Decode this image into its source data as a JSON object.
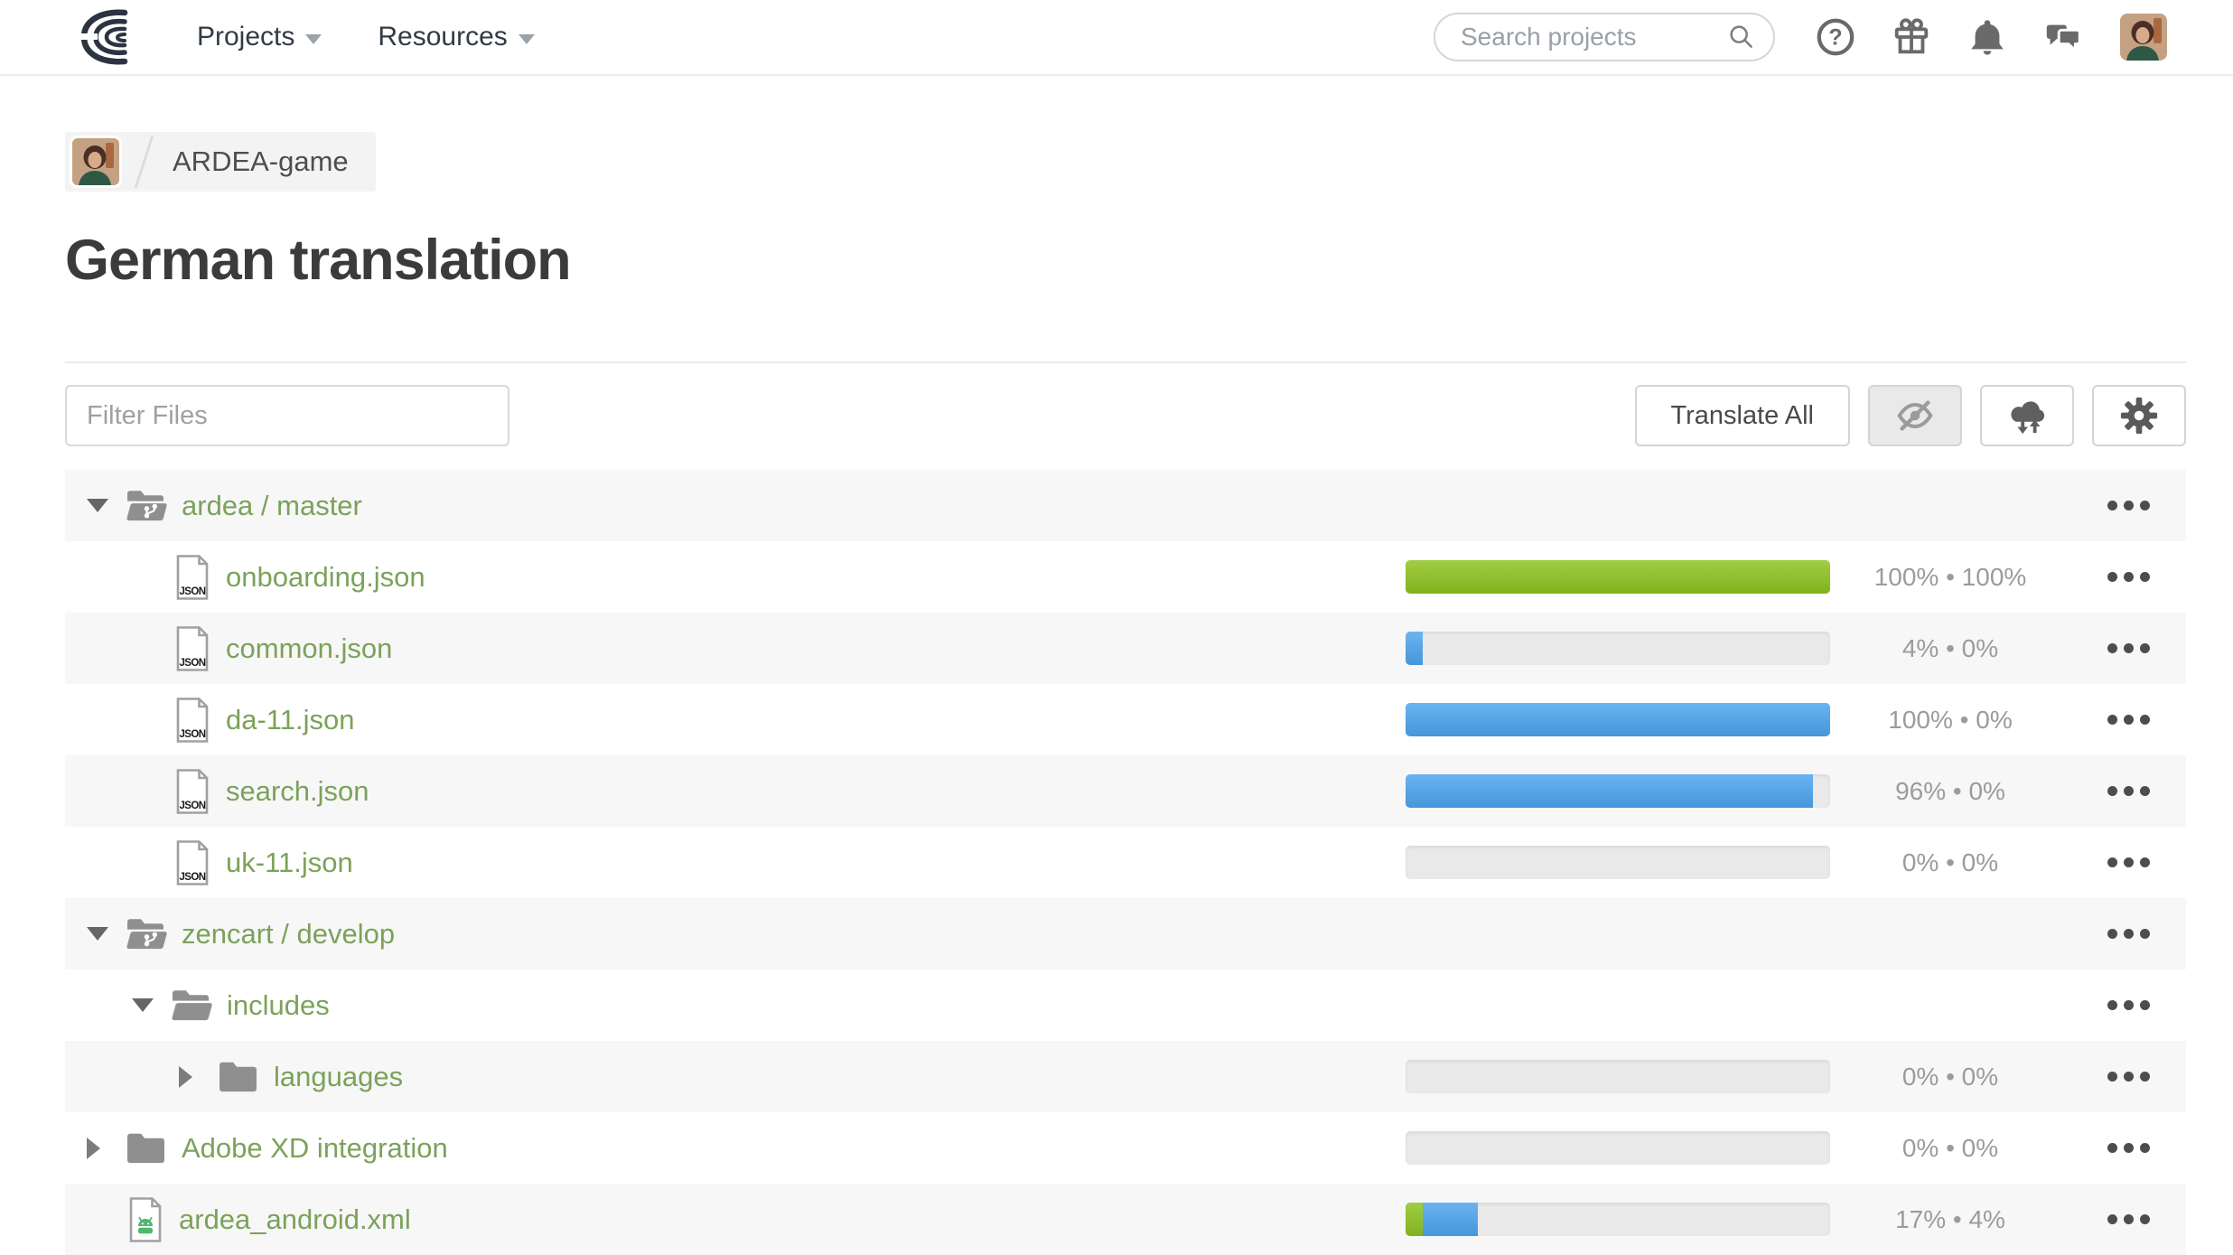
{
  "nav": {
    "projects_label": "Projects",
    "resources_label": "Resources",
    "search_placeholder": "Search projects"
  },
  "breadcrumb": {
    "project_name": "ARDEA-game"
  },
  "page": {
    "title": "German translation"
  },
  "toolbar": {
    "filter_placeholder": "Filter Files",
    "translate_all_label": "Translate All"
  },
  "files": {
    "rows": [
      {
        "name": "ardea / master",
        "type": "branch",
        "icon": "folder-git",
        "caret": "down",
        "indent": 24,
        "bar": null,
        "progress": null
      },
      {
        "name": "onboarding.json",
        "type": "file",
        "icon": "file-json",
        "caret": null,
        "indent": 120,
        "bar": {
          "green": 100,
          "blue": 0
        },
        "progress": "100% • 100%"
      },
      {
        "name": "common.json",
        "type": "file",
        "icon": "file-json",
        "caret": null,
        "indent": 120,
        "bar": {
          "green": 0,
          "blue": 4
        },
        "progress": "4% • 0%"
      },
      {
        "name": "da-11.json",
        "type": "file",
        "icon": "file-json",
        "caret": null,
        "indent": 120,
        "bar": {
          "green": 0,
          "blue": 100
        },
        "progress": "100% • 0%"
      },
      {
        "name": "search.json",
        "type": "file",
        "icon": "file-json",
        "caret": null,
        "indent": 120,
        "bar": {
          "green": 0,
          "blue": 96
        },
        "progress": "96% • 0%"
      },
      {
        "name": "uk-11.json",
        "type": "file",
        "icon": "file-json",
        "caret": null,
        "indent": 120,
        "bar": {
          "green": 0,
          "blue": 0
        },
        "progress": "0% • 0%"
      },
      {
        "name": "zencart / develop",
        "type": "branch",
        "icon": "folder-git",
        "caret": "down",
        "indent": 24,
        "bar": null,
        "progress": null
      },
      {
        "name": "includes",
        "type": "folder",
        "icon": "folder-open",
        "caret": "down",
        "indent": 74,
        "bar": null,
        "progress": null
      },
      {
        "name": "languages",
        "type": "folder",
        "icon": "folder",
        "caret": "right",
        "indent": 126,
        "bar": {
          "green": 0,
          "blue": 0
        },
        "progress": "0% • 0%"
      },
      {
        "name": "Adobe XD integration",
        "type": "folder",
        "icon": "folder",
        "caret": "right",
        "indent": 24,
        "bar": {
          "green": 0,
          "blue": 0
        },
        "progress": "0% • 0%"
      },
      {
        "name": "ardea_android.xml",
        "type": "file",
        "icon": "file-android",
        "caret": null,
        "indent": 68,
        "bar": {
          "green": 4,
          "blue": 13
        },
        "progress": "17% • 4%"
      }
    ]
  },
  "colors": {
    "link_green": "#7ba25a",
    "progress_green": "#8cc21d",
    "progress_blue": "#4aa3ee",
    "track_gray": "#e9e9e9",
    "row_stripe": "#f7f7f7"
  }
}
